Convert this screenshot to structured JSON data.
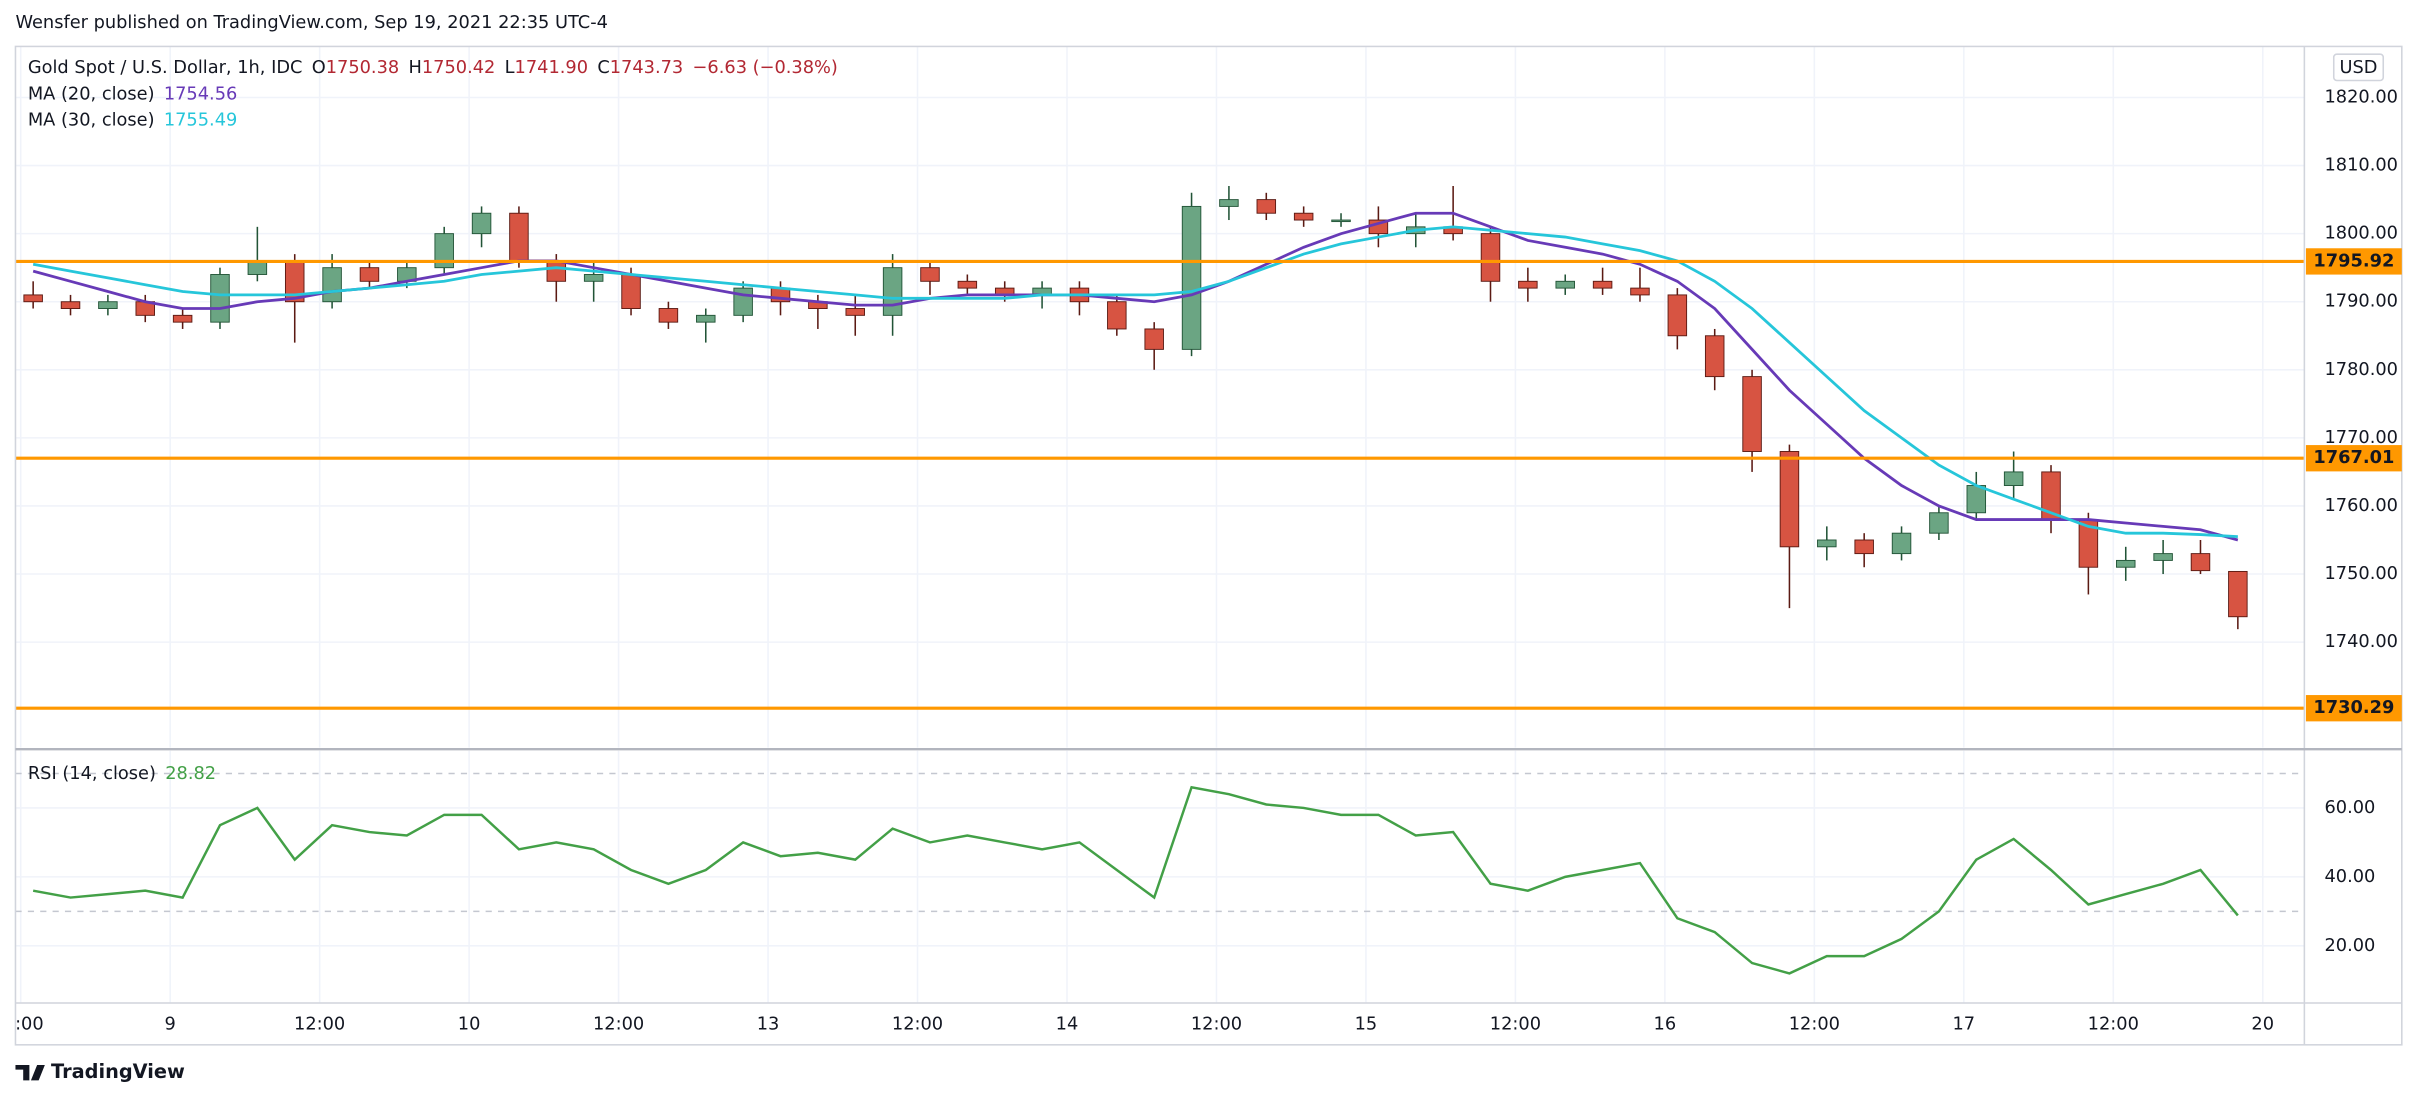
{
  "header": {
    "publisher_line": "Wensfer published on TradingView.com, Sep 19, 2021 22:35 UTC-4"
  },
  "footer": {
    "brand": "TradingView"
  },
  "chart_data": [
    {
      "type": "candlestick",
      "title": "Gold Spot / U.S. Dollar, 1h, IDC",
      "legend_values": [
        {
          "label": "O",
          "value": "1750.38"
        },
        {
          "label": "H",
          "value": "1750.42"
        },
        {
          "label": "L",
          "value": "1741.90"
        },
        {
          "label": "C",
          "value": "1743.73"
        }
      ],
      "change": "−6.63 (−0.38%)",
      "currency": "USD",
      "up_color": "#6ba583",
      "down_color": "#d75442",
      "up_wick": "#225437",
      "down_wick": "#5b1a13",
      "x": [
        1,
        4,
        7,
        10,
        13,
        16,
        19,
        22,
        25,
        28,
        31,
        34,
        37,
        40,
        43,
        46,
        49,
        52,
        55,
        58,
        61,
        64,
        67,
        70,
        73,
        76,
        79,
        82,
        85,
        88,
        91,
        94,
        97,
        100,
        103,
        106,
        109,
        112,
        115,
        118,
        121,
        124,
        127,
        130,
        133,
        136,
        139,
        142,
        145,
        148,
        151,
        154,
        157,
        160,
        163,
        166,
        169,
        172,
        175,
        178
      ],
      "open": [
        1791,
        1790,
        1789,
        1790,
        1788,
        1787,
        1794,
        1796,
        1790,
        1795,
        1793,
        1795,
        1800,
        1803,
        1796,
        1793,
        1794,
        1789,
        1787,
        1788,
        1792,
        1790,
        1789,
        1788,
        1795,
        1793,
        1792,
        1791,
        1792,
        1790,
        1786,
        1783,
        1804,
        1805,
        1803,
        1802,
        1802,
        1800,
        1801,
        1800,
        1793,
        1792,
        1793,
        1792,
        1791,
        1785,
        1779,
        1768,
        1754,
        1755,
        1753,
        1756,
        1759,
        1763,
        1765,
        1758,
        1751,
        1752,
        1753,
        1750.38
      ],
      "high": [
        1793,
        1791,
        1791,
        1791,
        1789,
        1795,
        1801,
        1797,
        1797,
        1796,
        1796,
        1801,
        1804,
        1804,
        1797,
        1796,
        1795,
        1790,
        1789,
        1793,
        1793,
        1791,
        1791,
        1797,
        1796,
        1794,
        1793,
        1793,
        1793,
        1791,
        1787,
        1806,
        1807,
        1806,
        1804,
        1803,
        1804,
        1803,
        1807,
        1801,
        1795,
        1794,
        1795,
        1795,
        1792,
        1786,
        1780,
        1769,
        1757,
        1756,
        1757,
        1760,
        1765,
        1768,
        1766,
        1759,
        1754,
        1755,
        1755,
        1750.42
      ],
      "low": [
        1789,
        1788,
        1788,
        1787,
        1786,
        1786,
        1793,
        1784,
        1789,
        1792,
        1792,
        1794,
        1798,
        1795,
        1790,
        1790,
        1788,
        1786,
        1784,
        1787,
        1788,
        1786,
        1785,
        1785,
        1791,
        1791,
        1790,
        1789,
        1788,
        1785,
        1780,
        1782,
        1802,
        1802,
        1801,
        1801,
        1798,
        1798,
        1799,
        1790,
        1790,
        1791,
        1791,
        1790,
        1783,
        1777,
        1765,
        1745,
        1752,
        1751,
        1752,
        1755,
        1758,
        1761,
        1756,
        1747,
        1749,
        1750,
        1750,
        1741.9
      ],
      "close": [
        1790,
        1789,
        1790,
        1788,
        1787,
        1794,
        1796,
        1790,
        1795,
        1793,
        1795,
        1800,
        1803,
        1796,
        1793,
        1794,
        1789,
        1787,
        1788,
        1792,
        1790,
        1789,
        1788,
        1795,
        1793,
        1792,
        1791,
        1792,
        1790,
        1786,
        1783,
        1804,
        1805,
        1803,
        1802,
        1802,
        1800,
        1801,
        1800,
        1793,
        1792,
        1793,
        1792,
        1791,
        1785,
        1779,
        1768,
        1754,
        1755,
        1753,
        1756,
        1759,
        1763,
        1765,
        1758,
        1751,
        1752,
        1753,
        1750.5,
        1743.73
      ],
      "series": [
        {
          "name": "MA (20, close)",
          "color": "#673ab7",
          "last_value": "1754.56",
          "values": [
            1794.5,
            1793,
            1791.5,
            1790,
            1789,
            1789,
            1790,
            1790.5,
            1791.5,
            1792,
            1793,
            1794,
            1795,
            1796,
            1796,
            1795,
            1794,
            1793,
            1792,
            1791,
            1790.5,
            1790,
            1789.5,
            1789.5,
            1790.5,
            1791,
            1791,
            1791,
            1791,
            1790.5,
            1790,
            1791,
            1793,
            1795.5,
            1798,
            1800,
            1801.5,
            1803,
            1803,
            1801,
            1799,
            1798,
            1797,
            1795.5,
            1793,
            1789,
            1783,
            1777,
            1772,
            1767,
            1763,
            1760,
            1758,
            1758,
            1758,
            1758,
            1757.5,
            1757,
            1756.5,
            1755
          ]
        },
        {
          "name": "MA (30, close)",
          "color": "#26c6da",
          "last_value": "1755.49",
          "values": [
            1795.5,
            1794.5,
            1793.5,
            1792.5,
            1791.5,
            1791,
            1791,
            1791,
            1791.5,
            1792,
            1792.5,
            1793,
            1794,
            1794.5,
            1795,
            1794.5,
            1794,
            1793.5,
            1793,
            1792.5,
            1792,
            1791.5,
            1791,
            1790.5,
            1790.5,
            1790.5,
            1790.5,
            1791,
            1791,
            1791,
            1791,
            1791.5,
            1793,
            1795,
            1797,
            1798.5,
            1799.5,
            1800.5,
            1801,
            1800.5,
            1800,
            1799.5,
            1798.5,
            1797.5,
            1796,
            1793,
            1789,
            1784,
            1779,
            1774,
            1770,
            1766,
            1763,
            1761,
            1759,
            1757,
            1756,
            1756,
            1755.8,
            1755.5
          ]
        }
      ],
      "hlines": [
        {
          "value": 1795.92,
          "color": "#ff9800"
        },
        {
          "value": 1767.01,
          "color": "#ff9800"
        },
        {
          "value": 1730.29,
          "color": "#ff9800"
        }
      ],
      "xlim": [
        -0.42,
        183.34
      ],
      "xticks": [
        {
          "value": 0,
          "label": ":00"
        },
        {
          "value": 12,
          "label": "9"
        },
        {
          "value": 24,
          "label": "12:00"
        },
        {
          "value": 36,
          "label": "10"
        },
        {
          "value": 48,
          "label": "12:00"
        },
        {
          "value": 60,
          "label": "13"
        },
        {
          "value": 72,
          "label": "12:00"
        },
        {
          "value": 84,
          "label": "14"
        },
        {
          "value": 96,
          "label": "12:00"
        },
        {
          "value": 108,
          "label": "15"
        },
        {
          "value": 120,
          "label": "12:00"
        },
        {
          "value": 132,
          "label": "16"
        },
        {
          "value": 144,
          "label": "12:00"
        },
        {
          "value": 156,
          "label": "17"
        },
        {
          "value": 168,
          "label": "12:00"
        },
        {
          "value": 180,
          "label": "20"
        }
      ],
      "ylim": [
        1724.5,
        1827.5
      ],
      "yticks": [
        {
          "value": 1740,
          "label": "1740.00"
        },
        {
          "value": 1750,
          "label": "1750.00"
        },
        {
          "value": 1760,
          "label": "1760.00"
        },
        {
          "value": 1770,
          "label": "1770.00"
        },
        {
          "value": 1780,
          "label": "1780.00"
        },
        {
          "value": 1790,
          "label": "1790.00"
        },
        {
          "value": 1800,
          "label": "1800.00"
        },
        {
          "value": 1810,
          "label": "1810.00"
        },
        {
          "value": 1820,
          "label": "1820.00"
        }
      ],
      "grid": true
    },
    {
      "type": "line",
      "x": [
        1,
        4,
        7,
        10,
        13,
        16,
        19,
        22,
        25,
        28,
        31,
        34,
        37,
        40,
        43,
        46,
        49,
        52,
        55,
        58,
        61,
        64,
        67,
        70,
        73,
        76,
        79,
        82,
        85,
        88,
        91,
        94,
        97,
        100,
        103,
        106,
        109,
        112,
        115,
        118,
        121,
        124,
        127,
        130,
        133,
        136,
        139,
        142,
        145,
        148,
        151,
        154,
        157,
        160,
        163,
        166,
        169,
        172,
        175,
        178
      ],
      "series": [
        {
          "name": "RSI (14, close)",
          "color": "#43a047",
          "last_value": "28.82",
          "values": [
            36,
            34,
            35,
            36,
            34,
            55,
            60,
            45,
            55,
            53,
            52,
            58,
            58,
            48,
            50,
            48,
            42,
            38,
            42,
            50,
            46,
            47,
            45,
            54,
            50,
            52,
            50,
            48,
            50,
            42,
            34,
            66,
            64,
            61,
            60,
            58,
            58,
            52,
            53,
            38,
            36,
            40,
            42,
            44,
            28,
            24,
            15,
            12,
            17,
            17,
            22,
            30,
            45,
            51,
            42,
            32,
            35,
            38,
            42,
            28.82
          ]
        }
      ],
      "bands": [
        70,
        30
      ],
      "xlim": [
        -0.42,
        183.34
      ],
      "ylim": [
        3.4,
        76.6
      ],
      "yticks": [
        {
          "value": 20,
          "label": "20.00"
        },
        {
          "value": 40,
          "label": "40.00"
        },
        {
          "value": 60,
          "label": "60.00"
        }
      ],
      "grid": true
    }
  ]
}
